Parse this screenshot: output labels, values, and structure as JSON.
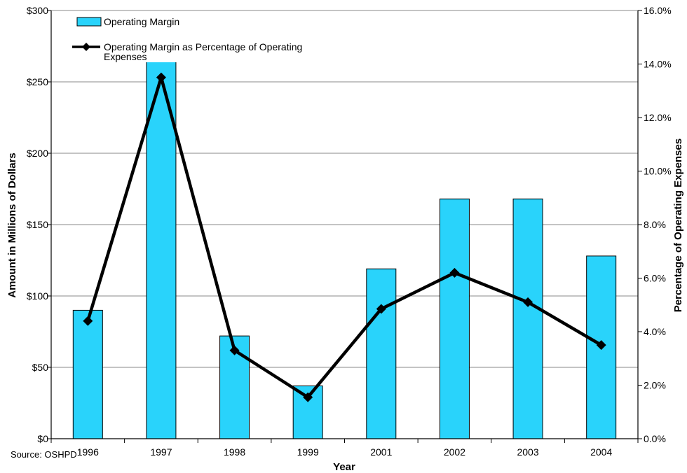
{
  "chart_data": {
    "type": "bar",
    "categories": [
      "1996",
      "1997",
      "1998",
      "1999",
      "2001",
      "2002",
      "2003",
      "2004"
    ],
    "series": [
      {
        "name": "Operating Margin",
        "type": "bar",
        "axis": "left",
        "color": "#29d3fb",
        "values": [
          90,
          265,
          72,
          37,
          119,
          168,
          168,
          128
        ]
      },
      {
        "name": "Operating Margin as Percentage of Operating Expenses",
        "legend_lines": [
          "Operating Margin as Percentage of Operating",
          "Expenses"
        ],
        "type": "line",
        "axis": "right",
        "color": "#000000",
        "marker": "diamond",
        "values": [
          4.4,
          13.5,
          3.3,
          1.55,
          4.85,
          6.2,
          5.1,
          3.5
        ]
      }
    ],
    "xlabel": "Year",
    "ylabel": "Amount in Millions of Dollars",
    "y2label": "Percentage of Operating Expenses",
    "ylim": [
      0,
      300
    ],
    "y2lim": [
      0,
      16
    ],
    "yticks": [
      "$0",
      "$50",
      "$100",
      "$150",
      "$200",
      "$250",
      "$300"
    ],
    "y2ticks": [
      "0.0%",
      "2.0%",
      "4.0%",
      "6.0%",
      "8.0%",
      "10.0%",
      "12.0%",
      "14.0%",
      "16.0%"
    ],
    "grid": true,
    "legend_position": "top-left",
    "source": "Source: OSHPD"
  }
}
